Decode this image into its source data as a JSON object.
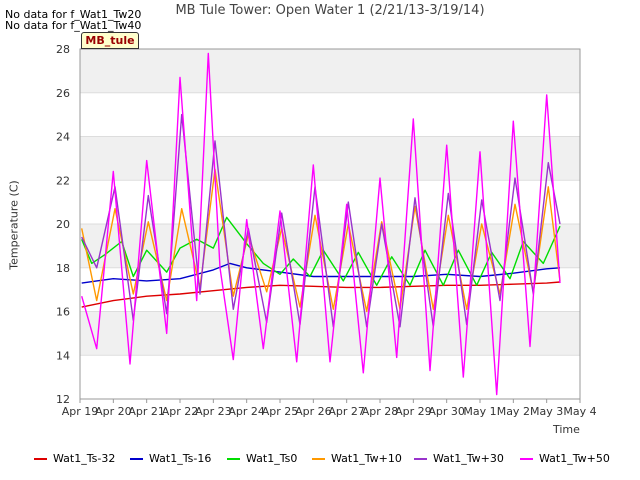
{
  "no_data_messages": [
    "No data for f_Wat1_Tw20",
    "No data for f_Wat1_Tw40"
  ],
  "tag_label": "MB_tule",
  "colors": {
    "band": "#f0f0f0",
    "grid": "#dddddd",
    "axis": "#999999"
  },
  "chart_data": {
    "type": "line",
    "title": "MB Tule Tower: Open Water 1 (2/21/13-3/19/14)",
    "xlabel": "Time",
    "ylabel": "Temperature (C)",
    "ylim": [
      12,
      28
    ],
    "y_ticks": [
      12,
      14,
      16,
      18,
      20,
      22,
      24,
      26,
      28
    ],
    "x_ticks": [
      "Apr 19",
      "Apr 20",
      "Apr 21",
      "Apr 22",
      "Apr 23",
      "Apr 24",
      "Apr 25",
      "Apr 26",
      "Apr 27",
      "Apr 28",
      "Apr 29",
      "Apr 30",
      "May 1",
      "May 2",
      "May 3",
      "May 4"
    ],
    "x_start": "Apr 19",
    "x_end": "May 4",
    "grid": true,
    "legend_position": "bottom",
    "series": [
      {
        "name": "Wat1_Ts-32",
        "color": "#dd0000",
        "x": [
          0.05,
          1,
          2,
          3,
          4,
          5,
          6,
          7,
          8,
          9,
          10,
          11,
          12,
          13,
          14,
          14.4
        ],
        "y": [
          16.2,
          16.5,
          16.7,
          16.8,
          16.95,
          17.1,
          17.2,
          17.15,
          17.1,
          17.1,
          17.15,
          17.2,
          17.2,
          17.25,
          17.3,
          17.35
        ]
      },
      {
        "name": "Wat1_Ts-16",
        "color": "#0000cc",
        "x": [
          0.05,
          0.5,
          1,
          2,
          3,
          3.5,
          4,
          4.5,
          5,
          6,
          7,
          8,
          9,
          10,
          11,
          12,
          13,
          14,
          14.4
        ],
        "y": [
          17.3,
          17.4,
          17.5,
          17.4,
          17.5,
          17.7,
          17.9,
          18.2,
          18.0,
          17.8,
          17.6,
          17.6,
          17.6,
          17.6,
          17.7,
          17.6,
          17.75,
          17.95,
          18.0
        ]
      },
      {
        "name": "Wat1_Ts0",
        "color": "#00dd00",
        "x": [
          0.05,
          0.35,
          0.75,
          1.25,
          1.6,
          2.0,
          2.6,
          3.0,
          3.5,
          4.0,
          4.4,
          5.0,
          5.5,
          6.0,
          6.4,
          6.9,
          7.3,
          7.9,
          8.35,
          8.9,
          9.35,
          9.9,
          10.35,
          10.9,
          11.35,
          11.9,
          12.35,
          12.9,
          13.3,
          13.9,
          14.4
        ],
        "y": [
          19.3,
          18.2,
          18.6,
          19.2,
          17.6,
          18.8,
          17.8,
          18.9,
          19.3,
          18.9,
          20.3,
          19.1,
          18.2,
          17.7,
          18.4,
          17.6,
          18.8,
          17.4,
          18.7,
          17.2,
          18.5,
          17.2,
          18.8,
          17.2,
          18.8,
          17.2,
          18.7,
          17.5,
          19.2,
          18.2,
          19.9
        ]
      },
      {
        "name": "Wat1_Tw+10",
        "color": "#ff9900",
        "x": [
          0.05,
          0.5,
          1.05,
          1.6,
          2.05,
          2.6,
          3.05,
          3.6,
          4.05,
          4.6,
          5.05,
          5.6,
          6.05,
          6.6,
          7.05,
          7.6,
          8.05,
          8.6,
          9.05,
          9.6,
          10.05,
          10.6,
          11.05,
          11.6,
          12.05,
          12.6,
          13.05,
          13.6,
          14.05,
          14.4
        ],
        "y": [
          19.8,
          16.5,
          20.7,
          16.8,
          20.1,
          16.5,
          20.7,
          17.1,
          22.5,
          16.7,
          19.5,
          16.9,
          19.8,
          16.2,
          20.4,
          16.1,
          20.0,
          16.0,
          20.1,
          16.1,
          20.8,
          16.1,
          20.4,
          16.1,
          20.0,
          16.8,
          20.9,
          16.9,
          21.7,
          17.4
        ]
      },
      {
        "name": "Wat1_Tw+30",
        "color": "#9933cc",
        "x": [
          0.05,
          0.5,
          1.05,
          1.6,
          2.05,
          2.6,
          3.05,
          3.6,
          4.05,
          4.6,
          5.05,
          5.6,
          6.05,
          6.6,
          7.05,
          7.6,
          8.05,
          8.6,
          9.05,
          9.6,
          10.05,
          10.6,
          11.05,
          11.6,
          12.05,
          12.6,
          13.05,
          13.6,
          14.05,
          14.4
        ],
        "y": [
          19.4,
          18.0,
          21.7,
          15.6,
          21.3,
          15.9,
          25.0,
          16.8,
          23.8,
          16.1,
          19.8,
          15.5,
          20.5,
          15.4,
          21.7,
          15.3,
          21.0,
          15.3,
          20.0,
          15.3,
          21.2,
          15.3,
          21.4,
          15.4,
          21.1,
          16.5,
          22.1,
          16.8,
          22.8,
          20.0
        ]
      },
      {
        "name": "Wat1_Tw+50",
        "color": "#ff00ff",
        "x": [
          0.05,
          0.5,
          1.0,
          1.5,
          2.0,
          2.6,
          3.0,
          3.5,
          3.85,
          4.2,
          4.6,
          5.0,
          5.5,
          6.0,
          6.5,
          7.0,
          7.5,
          8.0,
          8.5,
          9.0,
          9.5,
          10.0,
          10.5,
          11.0,
          11.5,
          12.0,
          12.5,
          13.0,
          13.5,
          14.0,
          14.4
        ],
        "y": [
          16.7,
          14.3,
          22.4,
          13.6,
          22.9,
          15.0,
          26.7,
          16.5,
          27.8,
          18.0,
          13.8,
          20.2,
          14.3,
          20.6,
          13.7,
          22.7,
          13.7,
          20.9,
          13.2,
          22.1,
          13.9,
          24.8,
          13.3,
          23.6,
          13.0,
          23.3,
          12.2,
          24.7,
          14.4,
          25.9,
          17.3
        ]
      }
    ]
  }
}
